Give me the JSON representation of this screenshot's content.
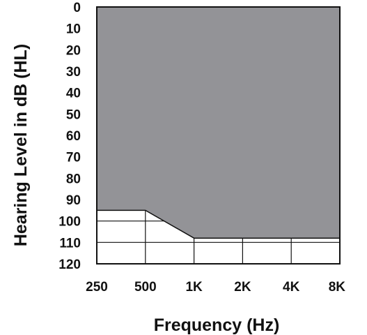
{
  "chart_data": {
    "type": "area",
    "title": "",
    "xlabel": "Frequency (Hz)",
    "ylabel": "Hearing Level in dB (HL)",
    "categories": [
      "250",
      "500",
      "1K",
      "2K",
      "4K",
      "8K"
    ],
    "y_ticks": [
      "0",
      "10",
      "20",
      "30",
      "40",
      "50",
      "60",
      "70",
      "80",
      "90",
      "100",
      "110",
      "120"
    ],
    "ylim": [
      0,
      120
    ],
    "y_inverted": true,
    "grid": true,
    "fill_color": "#939397",
    "series": [
      {
        "x": [
          "250",
          "500",
          "1K",
          "2K",
          "4K",
          "8K"
        ],
        "values": [
          95,
          95,
          108,
          108,
          108,
          108
        ]
      }
    ]
  }
}
